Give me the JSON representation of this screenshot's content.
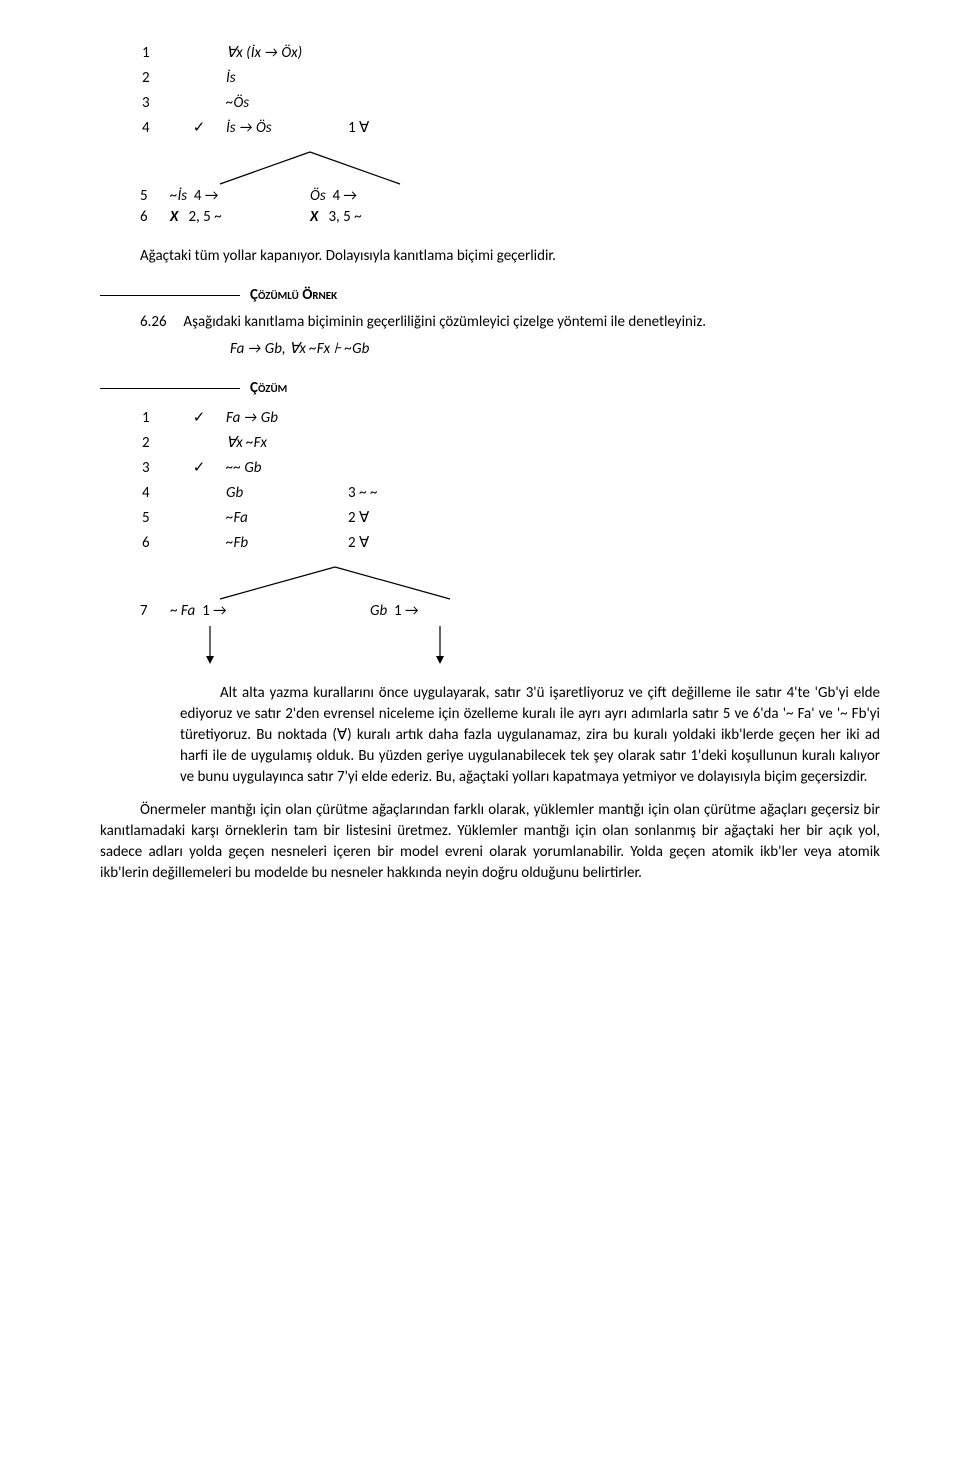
{
  "proof1": {
    "rows": [
      {
        "n": "1",
        "check": "",
        "formula": "∀x (İx → Öx)",
        "just": ""
      },
      {
        "n": "2",
        "check": "",
        "formula": "İs",
        "just": ""
      },
      {
        "n": "3",
        "check": "",
        "formula": "~Ös",
        "just": ""
      },
      {
        "n": "4",
        "check": "✓",
        "formula": "İs → Ös",
        "just": "1 ∀"
      }
    ],
    "split": [
      {
        "n": "5",
        "left": "~İs  4 →",
        "right": "Ös  4 →"
      },
      {
        "n": "6",
        "left": "X   2, 5 ~",
        "right": "X   3, 5 ~"
      }
    ]
  },
  "conclusion1": "Ağaçtaki tüm yollar kapanıyor. Dolayısıyla kanıtlama biçimi geçerlidir.",
  "example_header": "Çözümlü Örnek",
  "example": {
    "num": "6.26",
    "text": "Aşağıdaki kanıtlama biçiminin geçerliliğini çözümleyici çizelge yöntemi ile denetleyiniz.",
    "formula": "Fa → Gb, ∀x ~Fx  ⊦  ~Gb"
  },
  "solution_header": "Çözüm",
  "proof2": {
    "rows": [
      {
        "n": "1",
        "check": "✓",
        "formula": "Fa → Gb",
        "just": ""
      },
      {
        "n": "2",
        "check": "",
        "formula": "∀x ~Fx",
        "just": ""
      },
      {
        "n": "3",
        "check": "✓",
        "formula": "~~ Gb",
        "just": ""
      },
      {
        "n": "4",
        "check": "",
        "formula": "Gb",
        "just": "3 ~ ~"
      },
      {
        "n": "5",
        "check": "",
        "formula": "~Fa",
        "just": "2 ∀"
      },
      {
        "n": "6",
        "check": "",
        "formula": "~Fb",
        "just": "2 ∀"
      }
    ],
    "split": [
      {
        "n": "7",
        "left": "~ Fa  1 →",
        "right": "Gb  1 →"
      }
    ]
  },
  "explanation": "Alt alta yazma kurallarını önce uygulayarak, satır 3'ü işaretliyoruz ve çift değilleme ile satır 4'te 'Gb'yi elde ediyoruz ve satır 2'den evrensel niceleme için özelleme kuralı ile ayrı ayrı adımlarla satır 5 ve 6'da '~ Fa' ve '~ Fb'yi türetiyoruz. Bu noktada (∀) kuralı artık daha fazla uygulanamaz, zira bu kuralı yoldaki ikb'lerde geçen her iki ad harfi ile de uygulamış olduk. Bu yüzden geriye uygulanabilecek tek şey olarak satır 1'deki koşullunun kuralı kalıyor ve bunu uygulayınca satır 7'yi elde ederiz. Bu, ağaçtaki yolları kapatmaya yetmiyor ve dolayısıyla biçim geçersizdir.",
  "final_para": "Önermeler mantığı için olan çürütme ağaçlarından farklı olarak, yüklemler mantığı için olan çürütme ağaçları geçersiz bir kanıtlamadaki karşı örneklerin tam bir listesini üretmez. Yüklemler mantığı için olan sonlanmış bir ağaçtaki her bir açık yol, sadece adları yolda geçen nesneleri içeren bir model evreni olarak yorumlanabilir. Yolda geçen atomik ikb'ler veya atomik ikb'lerin değillemeleri bu modelde bu nesneler hakkında neyin doğru olduğunu belirtirler.",
  "svg": {
    "branch_color": "#000000",
    "arrow_color": "#000000"
  }
}
